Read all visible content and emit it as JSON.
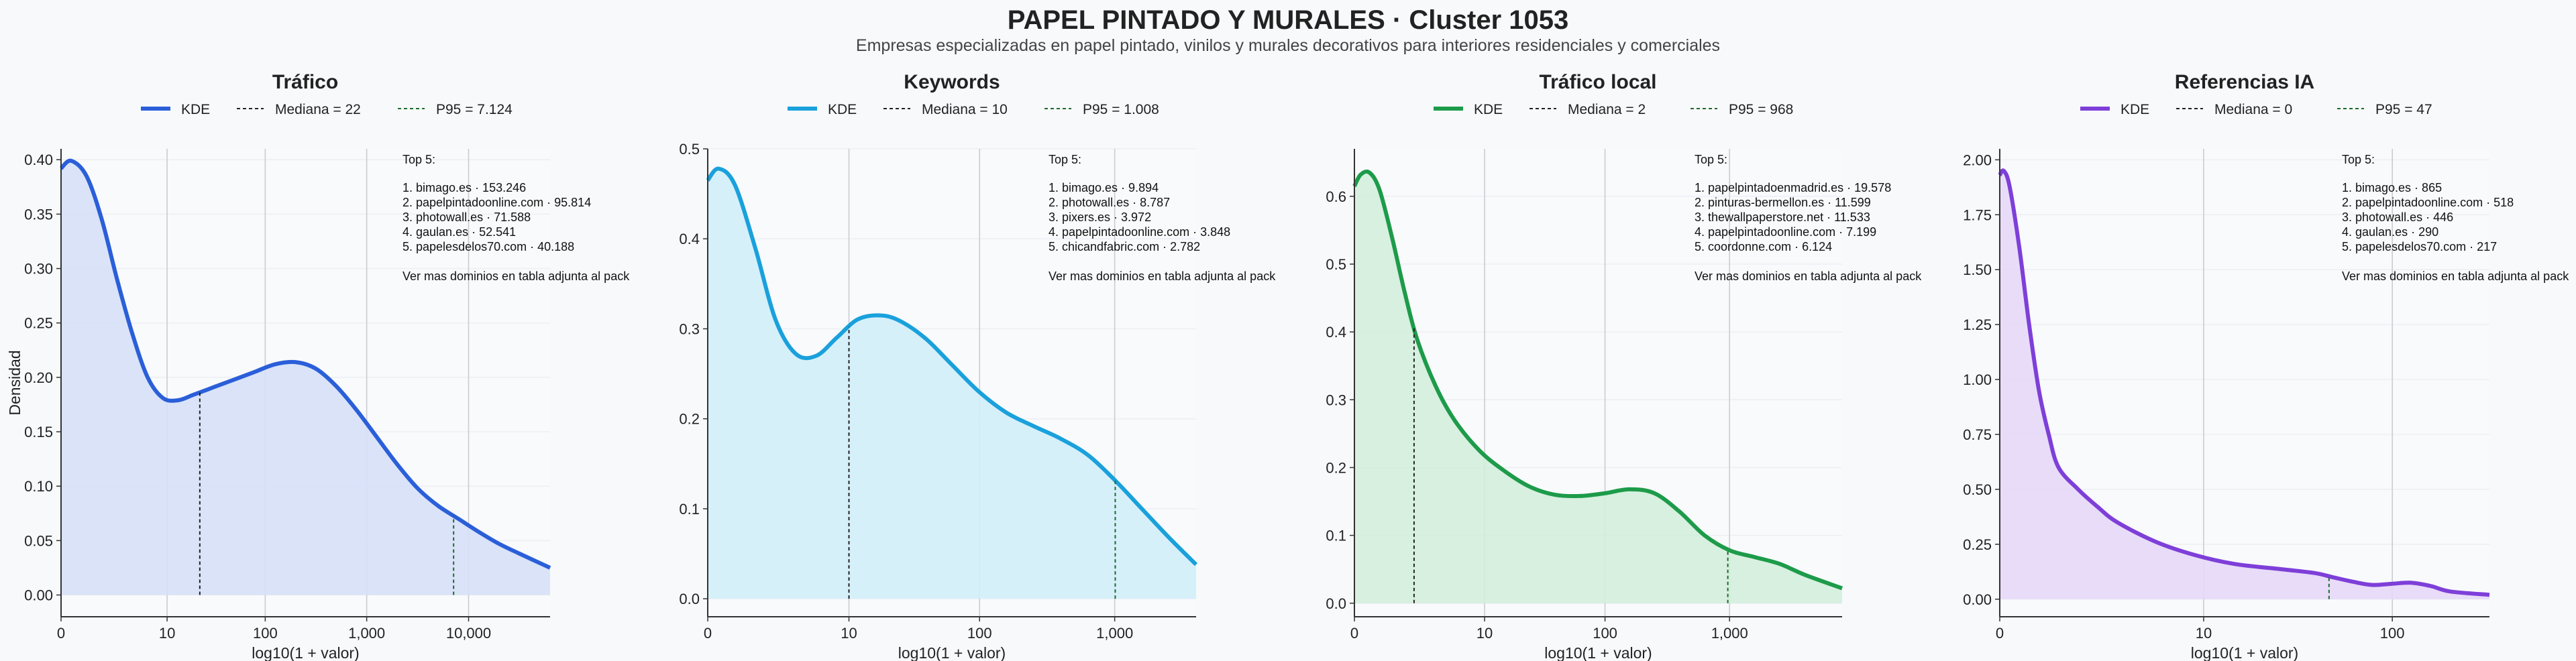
{
  "title": "PAPEL PINTADO Y MURALES · Cluster 1053",
  "subtitle": "Empresas especializadas en papel pintado, vinilos y murales decorativos para interiores residenciales y comerciales",
  "ylabel_left": "Densidad",
  "chart_data": [
    {
      "type": "area",
      "title": "Tráfico",
      "color": "#2b5fd9",
      "fill": "#d6e0f7",
      "xlabel": "log10(1 + valor)",
      "x_scale": "log10(1+x)",
      "xlim": [
        0,
        4.8
      ],
      "ylim": [
        -0.02,
        0.41
      ],
      "yticks": [
        0,
        0.05,
        0.1,
        0.15,
        0.2,
        0.25,
        0.3,
        0.35,
        0.4
      ],
      "ytick_labels": [
        "0.00",
        "0.05",
        "0.10",
        "0.15",
        "0.20",
        "0.25",
        "0.30",
        "0.35",
        "0.40"
      ],
      "xticks": [
        0,
        1.041,
        2.004,
        3.0,
        4.0
      ],
      "xtick_labels": [
        "0",
        "10",
        "100",
        "1,000",
        "10,000"
      ],
      "median": 22,
      "median_x": 1.362,
      "p95": 7124,
      "p95_x": 3.853,
      "legend": {
        "kde": "KDE",
        "median": "Mediana = 22",
        "p95": "P95 = 7.124"
      },
      "series": [
        {
          "name": "KDE",
          "x": [
            0,
            0.1,
            0.25,
            0.4,
            0.55,
            0.7,
            0.85,
            1.0,
            1.15,
            1.3,
            1.5,
            1.7,
            1.9,
            2.1,
            2.3,
            2.5,
            2.7,
            2.9,
            3.1,
            3.3,
            3.5,
            3.7,
            3.9,
            4.1,
            4.3,
            4.5,
            4.8
          ],
          "y": [
            0.392,
            0.399,
            0.385,
            0.345,
            0.29,
            0.24,
            0.2,
            0.181,
            0.179,
            0.184,
            0.191,
            0.198,
            0.205,
            0.212,
            0.214,
            0.208,
            0.192,
            0.17,
            0.145,
            0.12,
            0.098,
            0.082,
            0.07,
            0.058,
            0.047,
            0.038,
            0.025
          ]
        }
      ],
      "annotation": {
        "title": "Top 5:",
        "lines": [
          "1. bimago.es · 153.246",
          "2. papelpintadoonline.com · 95.814",
          "3. photowall.es · 71.588",
          "4. gaulan.es · 52.541",
          "5. papelesdelos70.com · 40.188"
        ],
        "footer": "Ver mas dominios en tabla adjunta al pack"
      }
    },
    {
      "type": "area",
      "title": "Keywords",
      "color": "#1aa1dc",
      "fill": "#d2eefa",
      "xlabel": "log10(1 + valor)",
      "x_scale": "log10(1+x)",
      "xlim": [
        0,
        3.6
      ],
      "ylim": [
        -0.02,
        0.5
      ],
      "yticks": [
        0,
        0.1,
        0.2,
        0.3,
        0.4,
        0.5
      ],
      "ytick_labels": [
        "0.0",
        "0.1",
        "0.2",
        "0.3",
        "0.4",
        "0.5"
      ],
      "xticks": [
        0,
        1.041,
        2.004,
        3.0
      ],
      "xtick_labels": [
        "0",
        "10",
        "100",
        "1,000"
      ],
      "median": 10,
      "median_x": 1.041,
      "p95": 1008,
      "p95_x": 3.004,
      "legend": {
        "kde": "KDE",
        "median": "Mediana = 10",
        "p95": "P95 = 1.008"
      },
      "series": [
        {
          "name": "KDE",
          "x": [
            0,
            0.08,
            0.2,
            0.35,
            0.5,
            0.65,
            0.8,
            0.95,
            1.1,
            1.25,
            1.4,
            1.6,
            1.8,
            2.0,
            2.2,
            2.4,
            2.6,
            2.8,
            3.0,
            3.2,
            3.4,
            3.6
          ],
          "y": [
            0.465,
            0.478,
            0.46,
            0.39,
            0.31,
            0.272,
            0.27,
            0.29,
            0.31,
            0.315,
            0.31,
            0.29,
            0.26,
            0.23,
            0.207,
            0.192,
            0.178,
            0.16,
            0.132,
            0.1,
            0.068,
            0.038
          ]
        }
      ],
      "annotation": {
        "title": "Top 5:",
        "lines": [
          "1. bimago.es · 9.894",
          "2. photowall.es · 8.787",
          "3. pixers.es · 3.972",
          "4. papelpintadoonline.com · 3.848",
          "5. chicandfabric.com · 2.782"
        ],
        "footer": "Ver mas dominios en tabla adjunta al pack"
      }
    },
    {
      "type": "area",
      "title": "Tráfico local",
      "color": "#1d9b4a",
      "fill": "#d3eedc",
      "xlabel": "log10(1 + valor)",
      "x_scale": "log10(1+x)",
      "xlim": [
        0,
        3.9
      ],
      "ylim": [
        -0.02,
        0.67
      ],
      "yticks": [
        0,
        0.1,
        0.2,
        0.3,
        0.4,
        0.5,
        0.6
      ],
      "ytick_labels": [
        "0.0",
        "0.1",
        "0.2",
        "0.3",
        "0.4",
        "0.5",
        "0.6"
      ],
      "xticks": [
        0,
        1.041,
        2.004,
        3.0
      ],
      "xtick_labels": [
        "0",
        "10",
        "100",
        "1,000"
      ],
      "median": 2,
      "median_x": 0.477,
      "p95": 968,
      "p95_x": 2.986,
      "legend": {
        "kde": "KDE",
        "median": "Mediana = 2",
        "p95": "P95 = 968"
      },
      "series": [
        {
          "name": "KDE",
          "x": [
            0,
            0.05,
            0.12,
            0.2,
            0.3,
            0.4,
            0.5,
            0.65,
            0.8,
            1.0,
            1.2,
            1.4,
            1.6,
            1.8,
            2.0,
            2.2,
            2.4,
            2.6,
            2.8,
            3.0,
            3.2,
            3.4,
            3.6,
            3.9
          ],
          "y": [
            0.615,
            0.632,
            0.635,
            0.61,
            0.54,
            0.46,
            0.39,
            0.32,
            0.27,
            0.225,
            0.195,
            0.172,
            0.16,
            0.158,
            0.162,
            0.168,
            0.162,
            0.135,
            0.1,
            0.078,
            0.068,
            0.058,
            0.042,
            0.022
          ]
        }
      ],
      "annotation": {
        "title": "Top 5:",
        "lines": [
          "1. papelpintadoenmadrid.es · 19.578",
          "2. pinturas-bermellon.es · 11.599",
          "3. thewallpaperstore.net · 11.533",
          "4. papelpintadoonline.com · 7.199",
          "5. coordonne.com · 6.124"
        ],
        "footer": "Ver mas dominios en tabla adjunta al pack"
      }
    },
    {
      "type": "area",
      "title": "Referencias IA",
      "color": "#7e3fd9",
      "fill": "#e5d8f7",
      "xlabel": "log10(1 + valor)",
      "x_scale": "log10(1+x)",
      "xlim": [
        0,
        2.5
      ],
      "ylim": [
        -0.08,
        2.05
      ],
      "yticks": [
        0,
        0.25,
        0.5,
        0.75,
        1.0,
        1.25,
        1.5,
        1.75,
        2.0
      ],
      "ytick_labels": [
        "0.00",
        "0.25",
        "0.50",
        "0.75",
        "1.00",
        "1.25",
        "1.50",
        "1.75",
        "2.00"
      ],
      "xticks": [
        0,
        1.041,
        2.004
      ],
      "xtick_labels": [
        "0",
        "10",
        "100"
      ],
      "median": 0,
      "median_x": 0,
      "p95": 47,
      "p95_x": 1.681,
      "legend": {
        "kde": "KDE",
        "median": "Mediana = 0",
        "p95": "P95 = 47"
      },
      "series": [
        {
          "name": "KDE",
          "x": [
            0,
            0.02,
            0.05,
            0.1,
            0.15,
            0.2,
            0.25,
            0.3,
            0.4,
            0.5,
            0.6,
            0.8,
            1.0,
            1.2,
            1.4,
            1.6,
            1.7,
            1.8,
            1.9,
            2.0,
            2.1,
            2.2,
            2.3,
            2.5
          ],
          "y": [
            1.93,
            1.95,
            1.88,
            1.6,
            1.25,
            0.95,
            0.75,
            0.6,
            0.5,
            0.42,
            0.35,
            0.26,
            0.2,
            0.16,
            0.14,
            0.12,
            0.1,
            0.08,
            0.065,
            0.07,
            0.075,
            0.06,
            0.035,
            0.02
          ]
        }
      ],
      "annotation": {
        "title": "Top 5:",
        "lines": [
          "1. bimago.es · 865",
          "2. papelpintadoonline.com · 518",
          "3. photowall.es · 446",
          "4. gaulan.es · 290",
          "5. papelesdelos70.com · 217"
        ],
        "footer": "Ver mas dominios en tabla adjunta al pack"
      }
    }
  ]
}
